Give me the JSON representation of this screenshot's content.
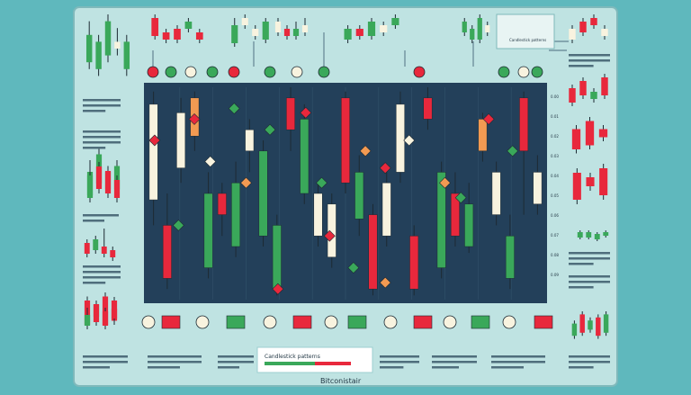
{
  "colors": {
    "background": "#5fb8bd",
    "panel": "#bfe3e2",
    "panel_border": "#7fb9bb",
    "chart_bg": "#23405a",
    "bull": "#3aa85a",
    "bear": "#e8283c",
    "neutral": "#f8f3df",
    "orange": "#f29a52",
    "ink": "#1e3340",
    "card": "#ffffff"
  },
  "header_note": "Candlestick patterns",
  "footer_title": "Candlestick patterns",
  "footer_brand": "Bitconistair",
  "price_scale": [
    "0.00",
    "0.01",
    "0.02",
    "0.03",
    "0.04",
    "0.05",
    "0.06",
    "0.07",
    "0.08",
    "0.09"
  ],
  "marker_icons": [
    "bitcoin-icon",
    "ethereum-icon",
    "bitcoin-icon",
    "triangle-icon",
    "bitcoin-icon",
    "ethereum-icon",
    "triangle-icon"
  ],
  "legend_icons": [
    "bitcoin-coin-icon",
    "bitcoin-coin-icon",
    "pie-icon",
    "trend-line-icon",
    "bitcoin-coin-icon",
    "pie-icon",
    "alert-icon"
  ],
  "main_candles": [
    {
      "o": 0.47,
      "c": 0.92,
      "h": 0.98,
      "l": 0.35,
      "t": "neutral"
    },
    {
      "o": 0.1,
      "c": 0.35,
      "h": 0.5,
      "l": 0.05,
      "t": "bear"
    },
    {
      "o": 0.88,
      "c": 0.62,
      "h": 0.95,
      "l": 0.55,
      "t": "neutral"
    },
    {
      "o": 0.77,
      "c": 0.95,
      "h": 0.98,
      "l": 0.7,
      "t": "orange"
    },
    {
      "o": 0.15,
      "c": 0.5,
      "h": 0.6,
      "l": 0.1,
      "t": "bull"
    },
    {
      "o": 0.5,
      "c": 0.4,
      "h": 0.55,
      "l": 0.3,
      "t": "bear"
    },
    {
      "o": 0.25,
      "c": 0.55,
      "h": 0.65,
      "l": 0.2,
      "t": "bull"
    },
    {
      "o": 0.7,
      "c": 0.8,
      "h": 0.85,
      "l": 0.6,
      "t": "neutral"
    },
    {
      "o": 0.3,
      "c": 0.7,
      "h": 0.75,
      "l": 0.25,
      "t": "bull"
    },
    {
      "o": 0.05,
      "c": 0.35,
      "h": 0.4,
      "l": 0.02,
      "t": "bull"
    },
    {
      "o": 0.8,
      "c": 0.95,
      "h": 1.0,
      "l": 0.7,
      "t": "bear"
    },
    {
      "o": 0.5,
      "c": 0.85,
      "h": 0.92,
      "l": 0.45,
      "t": "bull"
    },
    {
      "o": 0.3,
      "c": 0.5,
      "h": 0.55,
      "l": 0.25,
      "t": "neutral"
    },
    {
      "o": 0.2,
      "c": 0.45,
      "h": 0.5,
      "l": 0.15,
      "t": "neutral"
    },
    {
      "o": 0.95,
      "c": 0.55,
      "h": 0.98,
      "l": 0.5,
      "t": "bear"
    },
    {
      "o": 0.38,
      "c": 0.6,
      "h": 0.68,
      "l": 0.3,
      "t": "bull"
    },
    {
      "o": 0.05,
      "c": 0.4,
      "h": 0.45,
      "l": 0.02,
      "t": "bear"
    },
    {
      "o": 0.3,
      "c": 0.55,
      "h": 0.62,
      "l": 0.25,
      "t": "neutral"
    },
    {
      "o": 0.6,
      "c": 0.92,
      "h": 0.98,
      "l": 0.55,
      "t": "neutral"
    },
    {
      "o": 0.3,
      "c": 0.05,
      "h": 0.35,
      "l": 0.02,
      "t": "bear"
    },
    {
      "o": 0.85,
      "c": 0.95,
      "h": 1.0,
      "l": 0.8,
      "t": "bear"
    },
    {
      "o": 0.15,
      "c": 0.6,
      "h": 0.65,
      "l": 0.1,
      "t": "bull"
    },
    {
      "o": 0.5,
      "c": 0.3,
      "h": 0.6,
      "l": 0.25,
      "t": "bear"
    },
    {
      "o": 0.25,
      "c": 0.45,
      "h": 0.55,
      "l": 0.22,
      "t": "bull"
    },
    {
      "o": 0.85,
      "c": 0.7,
      "h": 0.88,
      "l": 0.65,
      "t": "orange"
    },
    {
      "o": 0.4,
      "c": 0.6,
      "h": 0.65,
      "l": 0.35,
      "t": "neutral"
    },
    {
      "o": 0.3,
      "c": 0.1,
      "h": 0.4,
      "l": 0.05,
      "t": "bull"
    },
    {
      "o": 0.7,
      "c": 0.95,
      "h": 0.98,
      "l": 0.4,
      "t": "bear"
    },
    {
      "o": 0.45,
      "c": 0.6,
      "h": 0.68,
      "l": 0.4,
      "t": "neutral"
    }
  ],
  "main_markers": [
    {
      "pos": 0.02,
      "v": 0.75,
      "t": "bear"
    },
    {
      "pos": 0.08,
      "v": 0.35,
      "t": "bull"
    },
    {
      "pos": 0.12,
      "v": 0.85,
      "t": "bear"
    },
    {
      "pos": 0.16,
      "v": 0.65,
      "t": "neutral"
    },
    {
      "pos": 0.22,
      "v": 0.9,
      "t": "bull"
    },
    {
      "pos": 0.25,
      "v": 0.55,
      "t": "orange"
    },
    {
      "pos": 0.31,
      "v": 0.8,
      "t": "bull"
    },
    {
      "pos": 0.4,
      "v": 0.88,
      "t": "bear"
    },
    {
      "pos": 0.44,
      "v": 0.55,
      "t": "bull"
    },
    {
      "pos": 0.46,
      "v": 0.3,
      "t": "bear"
    },
    {
      "pos": 0.55,
      "v": 0.7,
      "t": "orange"
    },
    {
      "pos": 0.6,
      "v": 0.62,
      "t": "bear"
    },
    {
      "pos": 0.66,
      "v": 0.75,
      "t": "neutral"
    },
    {
      "pos": 0.75,
      "v": 0.55,
      "t": "orange"
    },
    {
      "pos": 0.79,
      "v": 0.48,
      "t": "bull"
    },
    {
      "pos": 0.86,
      "v": 0.85,
      "t": "bear"
    },
    {
      "pos": 0.92,
      "v": 0.7,
      "t": "bull"
    },
    {
      "pos": 0.6,
      "v": 0.08,
      "t": "orange"
    },
    {
      "pos": 0.33,
      "v": 0.05,
      "t": "bear"
    },
    {
      "pos": 0.52,
      "v": 0.15,
      "t": "bull"
    }
  ],
  "mini_charts": [
    {
      "name": "top-1",
      "candles": [
        {
          "o": 0.3,
          "c": 0.7,
          "h": 0.9,
          "l": 0.2,
          "t": "bull"
        },
        {
          "o": 0.6,
          "c": 0.2,
          "h": 0.7,
          "l": 0.1,
          "t": "bull"
        },
        {
          "o": 0.4,
          "c": 0.9,
          "h": 1.0,
          "l": 0.3,
          "t": "bull"
        },
        {
          "o": 0.5,
          "c": 0.6,
          "h": 0.8,
          "l": 0.4,
          "t": "neutral"
        },
        {
          "o": 0.2,
          "c": 0.6,
          "h": 0.7,
          "l": 0.1,
          "t": "bull"
        }
      ]
    },
    {
      "name": "top-2",
      "candles": [
        {
          "o": 0.4,
          "c": 0.9,
          "h": 1.0,
          "l": 0.3,
          "t": "bear"
        },
        {
          "o": 0.5,
          "c": 0.3,
          "h": 0.6,
          "l": 0.2,
          "t": "bear"
        },
        {
          "o": 0.3,
          "c": 0.6,
          "h": 0.7,
          "l": 0.2,
          "t": "bear"
        },
        {
          "o": 0.6,
          "c": 0.8,
          "h": 0.9,
          "l": 0.5,
          "t": "bull"
        },
        {
          "o": 0.5,
          "c": 0.3,
          "h": 0.6,
          "l": 0.2,
          "t": "bear"
        }
      ]
    },
    {
      "name": "top-3",
      "candles": [
        {
          "o": 0.2,
          "c": 0.7,
          "h": 0.9,
          "l": 0.1,
          "t": "bull"
        },
        {
          "o": 0.7,
          "c": 0.9,
          "h": 1.0,
          "l": 0.6,
          "t": "neutral"
        },
        {
          "o": 0.4,
          "c": 0.6,
          "h": 0.7,
          "l": 0.3,
          "t": "neutral"
        },
        {
          "o": 0.3,
          "c": 0.8,
          "h": 0.9,
          "l": 0.2,
          "t": "bull"
        }
      ]
    },
    {
      "name": "top-4",
      "candles": [
        {
          "o": 0.5,
          "c": 0.8,
          "h": 0.9,
          "l": 0.4,
          "t": "neutral"
        },
        {
          "o": 0.6,
          "c": 0.4,
          "h": 0.7,
          "l": 0.3,
          "t": "bear"
        },
        {
          "o": 0.4,
          "c": 0.6,
          "h": 0.8,
          "l": 0.3,
          "t": "bull"
        },
        {
          "o": 0.5,
          "c": 0.7,
          "h": 0.9,
          "l": 0.4,
          "t": "neutral"
        }
      ]
    },
    {
      "name": "top-5",
      "candles": [
        {
          "o": 0.3,
          "c": 0.6,
          "h": 0.7,
          "l": 0.2,
          "t": "bull"
        },
        {
          "o": 0.6,
          "c": 0.4,
          "h": 0.7,
          "l": 0.3,
          "t": "bear"
        },
        {
          "o": 0.4,
          "c": 0.8,
          "h": 0.9,
          "l": 0.3,
          "t": "bull"
        },
        {
          "o": 0.5,
          "c": 0.7,
          "h": 0.8,
          "l": 0.4,
          "t": "neutral"
        },
        {
          "o": 0.7,
          "c": 0.9,
          "h": 1.0,
          "l": 0.6,
          "t": "bull"
        }
      ]
    },
    {
      "name": "top-6",
      "candles": [
        {
          "o": 0.5,
          "c": 0.8,
          "h": 0.9,
          "l": 0.4,
          "t": "bull"
        },
        {
          "o": 0.6,
          "c": 0.3,
          "h": 0.7,
          "l": 0.2,
          "t": "bull"
        },
        {
          "o": 0.3,
          "c": 0.9,
          "h": 1.0,
          "l": 0.2,
          "t": "bull"
        },
        {
          "o": 0.7,
          "c": 0.5,
          "h": 0.8,
          "l": 0.4,
          "t": "neutral"
        }
      ]
    },
    {
      "name": "top-right",
      "candles": [
        {
          "o": 0.3,
          "c": 0.6,
          "h": 0.7,
          "l": 0.2,
          "t": "neutral"
        },
        {
          "o": 0.5,
          "c": 0.8,
          "h": 0.9,
          "l": 0.4,
          "t": "bear"
        },
        {
          "o": 0.7,
          "c": 0.9,
          "h": 1.0,
          "l": 0.6,
          "t": "bear"
        },
        {
          "o": 0.4,
          "c": 0.6,
          "h": 0.7,
          "l": 0.3,
          "t": "neutral"
        }
      ]
    },
    {
      "name": "left-1",
      "candles": [
        {
          "o": 0.2,
          "c": 0.6,
          "h": 0.8,
          "l": 0.1,
          "t": "bull"
        },
        {
          "o": 0.4,
          "c": 0.9,
          "h": 1.0,
          "l": 0.3,
          "t": "bull"
        },
        {
          "o": 0.6,
          "c": 0.3,
          "h": 0.7,
          "l": 0.2,
          "t": "bull"
        },
        {
          "o": 0.3,
          "c": 0.7,
          "h": 0.8,
          "l": 0.2,
          "t": "bull"
        }
      ]
    },
    {
      "name": "left-2",
      "candles": [
        {
          "o": 0.2,
          "c": 0.7,
          "h": 0.8,
          "l": 0.1,
          "t": "bull"
        },
        {
          "o": 0.4,
          "c": 0.9,
          "h": 1.0,
          "l": 0.3,
          "t": "bear"
        },
        {
          "o": 0.3,
          "c": 0.8,
          "h": 0.9,
          "l": 0.2,
          "t": "bear"
        },
        {
          "o": 0.2,
          "c": 0.6,
          "h": 0.7,
          "l": 0.1,
          "t": "bear"
        }
      ]
    },
    {
      "name": "left-3",
      "candles": [
        {
          "o": 0.2,
          "c": 0.5,
          "h": 0.6,
          "l": 0.1,
          "t": "bear"
        },
        {
          "o": 0.3,
          "c": 0.6,
          "h": 0.7,
          "l": 0.2,
          "t": "bull"
        },
        {
          "o": 0.2,
          "c": 0.4,
          "h": 0.9,
          "l": 0.1,
          "t": "bear"
        },
        {
          "o": 0.1,
          "c": 0.3,
          "h": 0.4,
          "l": 0.0,
          "t": "bear"
        }
      ]
    },
    {
      "name": "left-4",
      "candles": [
        {
          "o": 0.2,
          "c": 0.8,
          "h": 0.9,
          "l": 0.1,
          "t": "bear"
        },
        {
          "o": 0.4,
          "c": 0.7,
          "h": 0.8,
          "l": 0.3,
          "t": "bull"
        },
        {
          "o": 0.2,
          "c": 0.9,
          "h": 1.0,
          "l": 0.1,
          "t": "bear"
        },
        {
          "o": 0.3,
          "c": 0.6,
          "h": 0.7,
          "l": 0.2,
          "t": "bear"
        }
      ]
    },
    {
      "name": "right-1",
      "candles": [
        {
          "o": 0.2,
          "c": 0.6,
          "h": 0.7,
          "l": 0.1,
          "t": "bear"
        },
        {
          "o": 0.4,
          "c": 0.8,
          "h": 0.9,
          "l": 0.3,
          "t": "bear"
        },
        {
          "o": 0.3,
          "c": 0.5,
          "h": 0.6,
          "l": 0.2,
          "t": "bull"
        },
        {
          "o": 0.4,
          "c": 0.9,
          "h": 1.0,
          "l": 0.3,
          "t": "bear"
        }
      ]
    },
    {
      "name": "right-2",
      "candles": [
        {
          "o": 0.2,
          "c": 0.7,
          "h": 0.8,
          "l": 0.1,
          "t": "bear"
        },
        {
          "o": 0.3,
          "c": 0.9,
          "h": 1.0,
          "l": 0.2,
          "t": "bear"
        },
        {
          "o": 0.5,
          "c": 0.7,
          "h": 0.8,
          "l": 0.4,
          "t": "bear"
        }
      ]
    },
    {
      "name": "right-3",
      "candles": [
        {
          "o": 0.2,
          "c": 0.8,
          "h": 0.9,
          "l": 0.1,
          "t": "bear"
        },
        {
          "o": 0.5,
          "c": 0.7,
          "h": 0.8,
          "l": 0.4,
          "t": "bear"
        },
        {
          "o": 0.3,
          "c": 0.9,
          "h": 1.0,
          "l": 0.2,
          "t": "bear"
        }
      ]
    },
    {
      "name": "right-4",
      "candles": [
        {
          "o": 0.3,
          "c": 0.6,
          "h": 0.7,
          "l": 0.2,
          "t": "bull"
        },
        {
          "o": 0.3,
          "c": 0.6,
          "h": 0.7,
          "l": 0.2,
          "t": "bull"
        },
        {
          "o": 0.2,
          "c": 0.5,
          "h": 0.6,
          "l": 0.1,
          "t": "bull"
        },
        {
          "o": 0.4,
          "c": 0.6,
          "h": 0.7,
          "l": 0.3,
          "t": "bull"
        }
      ]
    },
    {
      "name": "right-5",
      "candles": [
        {
          "o": 0.2,
          "c": 0.6,
          "h": 0.7,
          "l": 0.1,
          "t": "bull"
        },
        {
          "o": 0.3,
          "c": 0.9,
          "h": 1.0,
          "l": 0.2,
          "t": "bear"
        },
        {
          "o": 0.4,
          "c": 0.7,
          "h": 0.8,
          "l": 0.3,
          "t": "bull"
        },
        {
          "o": 0.2,
          "c": 0.8,
          "h": 0.9,
          "l": 0.1,
          "t": "bear"
        },
        {
          "o": 0.3,
          "c": 0.9,
          "h": 1.0,
          "l": 0.2,
          "t": "bull"
        }
      ]
    },
    {
      "name": "bottom-left",
      "candles": [
        {
          "o": 0.2,
          "c": 0.5,
          "h": 0.7,
          "l": 0.1,
          "t": "bull"
        },
        {
          "o": 0.3,
          "c": 0.8,
          "h": 0.9,
          "l": 0.2,
          "t": "bear"
        },
        {
          "o": 0.2,
          "c": 0.6,
          "h": 0.7,
          "l": 0.1,
          "t": "bear"
        },
        {
          "o": 0.4,
          "c": 0.9,
          "h": 1.0,
          "l": 0.3,
          "t": "bear"
        }
      ]
    }
  ]
}
